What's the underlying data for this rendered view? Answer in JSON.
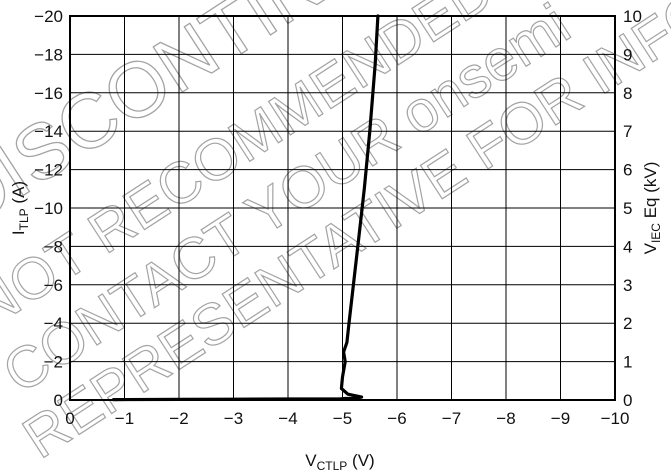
{
  "chart_data": {
    "type": "line",
    "xlabel": {
      "base": "V",
      "sub": "CTLP",
      "unit": " (V)"
    },
    "ylabel_left": {
      "base": "I",
      "sub": "TLP",
      "unit": " (A)"
    },
    "ylabel_right": {
      "base": "V",
      "sub": "IEC",
      "unit": " Eq (kV)"
    },
    "xlim": [
      0,
      -10
    ],
    "ylim_left": [
      0,
      -20
    ],
    "ylim_right": [
      0,
      10
    ],
    "x_ticks": [
      "0",
      "−1",
      "−2",
      "−3",
      "−4",
      "−5",
      "−6",
      "−7",
      "−8",
      "−9",
      "−10"
    ],
    "y_left_ticks": [
      "0",
      "−2",
      "−4",
      "−6",
      "−8",
      "−10",
      "−12",
      "−14",
      "−16",
      "−18",
      "−20"
    ],
    "y_right_ticks": [
      "0",
      "1",
      "2",
      "3",
      "4",
      "5",
      "6",
      "7",
      "8",
      "9",
      "10"
    ],
    "grid": true,
    "series": [
      {
        "x": [
          -0.8,
          -2.0,
          -3.0,
          -4.0,
          -4.7,
          -4.95,
          -5.05,
          -5.25,
          -5.35,
          -5.1,
          -4.98,
          -5.0,
          -5.05,
          -5.02,
          -5.08,
          -5.12,
          -5.2,
          -5.3,
          -5.4,
          -5.5,
          -5.6,
          -5.65
        ],
        "y": [
          -0.02,
          -0.03,
          -0.04,
          -0.05,
          -0.05,
          -0.05,
          -0.08,
          -0.1,
          -0.15,
          -0.3,
          -0.6,
          -1.2,
          -2.0,
          -2.5,
          -3.0,
          -4.0,
          -6.0,
          -8.5,
          -11.0,
          -14.0,
          -17.5,
          -20.0
        ]
      }
    ]
  },
  "watermark": {
    "lines": [
      "DISCONTINUED",
      "NOT RECOMMENDED FOR NEW DESIGN",
      "CONTACT YOUR onsemi",
      "REPRESENTATIVE FOR INFORMATION"
    ]
  }
}
